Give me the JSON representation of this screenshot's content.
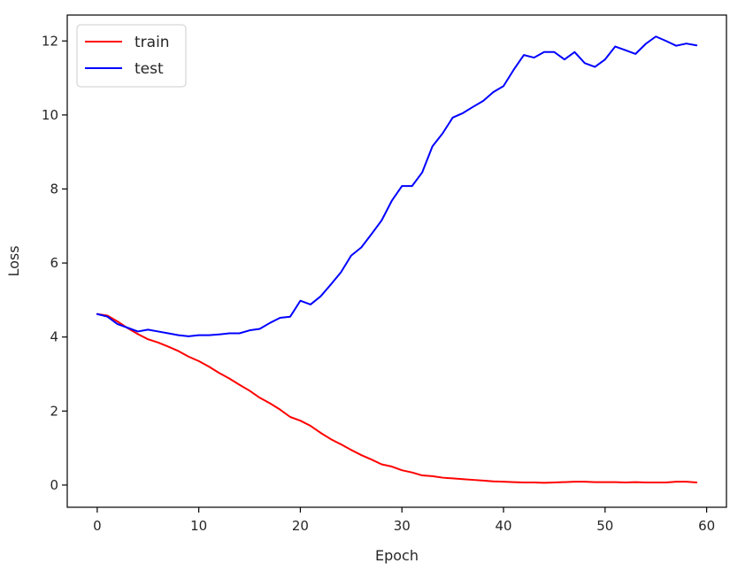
{
  "chart_data": {
    "type": "line",
    "title": "",
    "xlabel": "Epoch",
    "ylabel": "Loss",
    "xlim": [
      -2.95,
      61.95
    ],
    "ylim": [
      -0.6,
      12.7
    ],
    "xticks": [
      0,
      10,
      20,
      30,
      40,
      50,
      60
    ],
    "yticks": [
      0,
      2,
      4,
      6,
      8,
      10,
      12
    ],
    "grid": false,
    "legend_position": "top-left",
    "x": [
      0,
      1,
      2,
      3,
      4,
      5,
      6,
      7,
      8,
      9,
      10,
      11,
      12,
      13,
      14,
      15,
      16,
      17,
      18,
      19,
      20,
      21,
      22,
      23,
      24,
      25,
      26,
      27,
      28,
      29,
      30,
      31,
      32,
      33,
      34,
      35,
      36,
      37,
      38,
      39,
      40,
      41,
      42,
      43,
      44,
      45,
      46,
      47,
      48,
      49,
      50,
      51,
      52,
      53,
      54,
      55,
      56,
      57,
      58,
      59
    ],
    "series": [
      {
        "name": "train",
        "color": "#ff0000",
        "values": [
          4.62,
          4.58,
          4.42,
          4.24,
          4.08,
          3.94,
          3.85,
          3.74,
          3.62,
          3.47,
          3.35,
          3.2,
          3.03,
          2.88,
          2.71,
          2.55,
          2.36,
          2.21,
          2.04,
          1.84,
          1.74,
          1.6,
          1.41,
          1.24,
          1.1,
          0.95,
          0.81,
          0.69,
          0.56,
          0.5,
          0.4,
          0.34,
          0.26,
          0.24,
          0.2,
          0.18,
          0.16,
          0.14,
          0.12,
          0.1,
          0.09,
          0.08,
          0.07,
          0.07,
          0.06,
          0.07,
          0.08,
          0.09,
          0.09,
          0.08,
          0.08,
          0.08,
          0.07,
          0.08,
          0.07,
          0.07,
          0.07,
          0.09,
          0.09,
          0.07
        ]
      },
      {
        "name": "test",
        "color": "#0000ff",
        "values": [
          4.62,
          4.55,
          4.35,
          4.25,
          4.15,
          4.2,
          4.15,
          4.1,
          4.05,
          4.02,
          4.05,
          4.05,
          4.07,
          4.1,
          4.1,
          4.18,
          4.22,
          4.38,
          4.52,
          4.55,
          4.98,
          4.88,
          5.1,
          5.42,
          5.75,
          6.2,
          6.42,
          6.78,
          7.15,
          7.68,
          8.08,
          8.08,
          8.45,
          9.15,
          9.5,
          9.93,
          10.05,
          10.22,
          10.38,
          10.62,
          10.78,
          11.22,
          11.62,
          11.55,
          11.7,
          11.7,
          11.5,
          11.7,
          11.4,
          11.3,
          11.5,
          11.85,
          11.75,
          11.65,
          11.92,
          12.12,
          12.0,
          11.87,
          11.93,
          11.88
        ]
      }
    ]
  }
}
